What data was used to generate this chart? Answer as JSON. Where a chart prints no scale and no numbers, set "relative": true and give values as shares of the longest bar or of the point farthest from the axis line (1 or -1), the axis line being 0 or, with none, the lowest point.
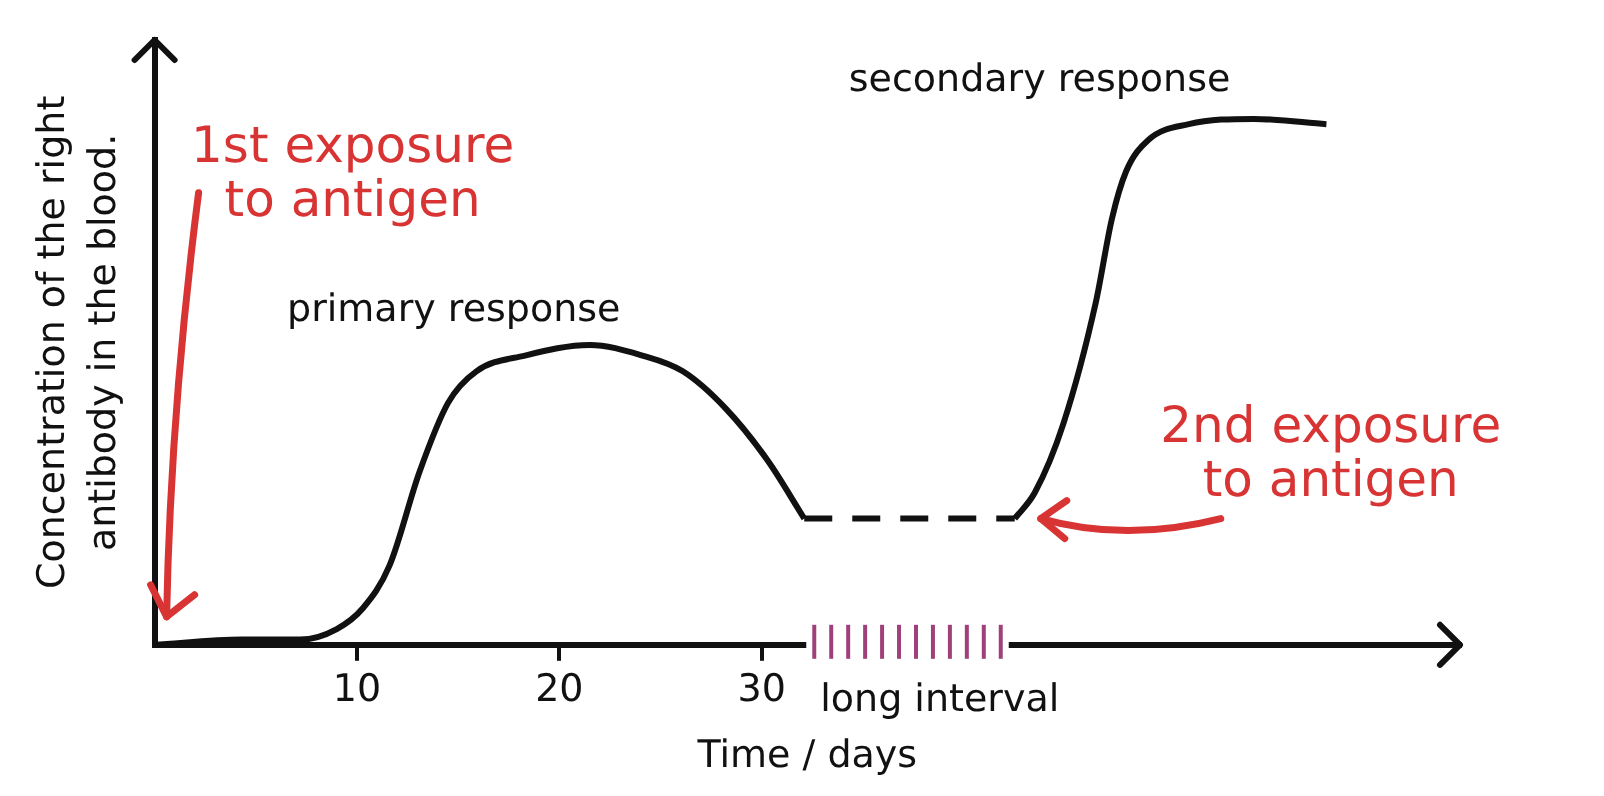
{
  "chart_data": {
    "type": "line",
    "relative": true,
    "xlabel": "Time / days",
    "ylabel": "Concentration of the right antibody in the blood.",
    "xlim": [
      0,
      64.5
    ],
    "xticks": [
      10,
      20,
      30
    ],
    "grid": false,
    "legend": false,
    "marker": "none",
    "series": [
      {
        "color": "#111111",
        "line_style": "solid",
        "x": [
          0,
          4.3,
          7.2,
          9,
          10.3,
          11.6,
          13.1,
          14.5,
          15.9,
          18.3,
          21.5,
          24.1,
          26.1,
          28.2,
          30.3,
          32.1
        ],
        "values": [
          0,
          0.01,
          0.01,
          0.03,
          0.07,
          0.15,
          0.33,
          0.46,
          0.52,
          0.55,
          0.57,
          0.55,
          0.52,
          0.45,
          0.35,
          0.24
        ]
      },
      {
        "color": "#111111",
        "line_style": "dashed",
        "x": [
          32.1,
          42.5
        ],
        "values": [
          0.24,
          0.24
        ]
      },
      {
        "color": "#111111",
        "line_style": "solid",
        "x": [
          42.5,
          43.5,
          44.9,
          46.5,
          47.3,
          48,
          49.1,
          51.1,
          54.3,
          57.9
        ],
        "values": [
          0.24,
          0.29,
          0.42,
          0.65,
          0.81,
          0.9,
          0.96,
          0.99,
          1,
          0.99
        ]
      }
    ],
    "annotations": [
      "1st exposure to antigen",
      {
        "text": "2nd exposure to antigen",
        "x": 42.5,
        "y": 0.24
      },
      {
        "text": "primary response",
        "x": 21.5,
        "y": 0.57
      },
      {
        "text": "secondary response",
        "x": 54.3,
        "y": 1
      },
      "long interval"
    ]
  }
}
